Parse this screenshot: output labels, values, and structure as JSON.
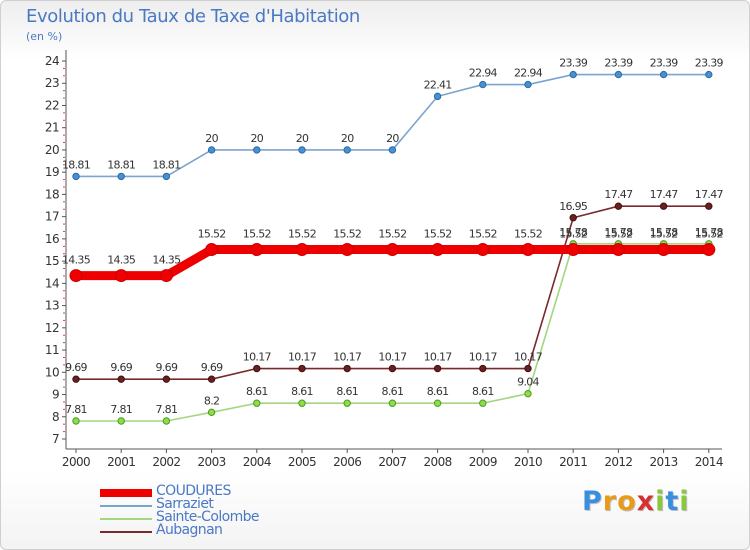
{
  "header": {
    "title": "Evolution du Taux de Taxe d'Habitation",
    "subtitle": "(en %)"
  },
  "chart_data": {
    "type": "line",
    "title": "Evolution du Taux de Taxe d'Habitation",
    "ylabel": "(en %)",
    "xlabel": "",
    "x": [
      "2000",
      "2001",
      "2002",
      "2003",
      "2004",
      "2005",
      "2006",
      "2007",
      "2008",
      "2009",
      "2010",
      "2011",
      "2012",
      "2013",
      "2014"
    ],
    "ylim": [
      7,
      24
    ],
    "yticks": [
      "7",
      "8",
      "9",
      "10",
      "11",
      "12",
      "13",
      "14",
      "15",
      "16",
      "17",
      "18",
      "19",
      "20",
      "21",
      "22",
      "23",
      "24"
    ],
    "grid": false,
    "series": [
      {
        "name": "COUDURES",
        "color": "#ee0000",
        "values": [
          14.35,
          14.35,
          14.35,
          15.52,
          15.52,
          15.52,
          15.52,
          15.52,
          15.52,
          15.52,
          15.52,
          15.52,
          15.52,
          15.52,
          15.52
        ],
        "labels": [
          "14.35",
          "14.35",
          "14.35",
          "15.52",
          "15.52",
          "15.52",
          "15.52",
          "15.52",
          "15.52",
          "15.52",
          "15.52",
          "15.52",
          "15.52",
          "15.52",
          "15.52"
        ]
      },
      {
        "name": "Sarraziet",
        "color": "#7ba4cf",
        "values": [
          18.81,
          18.81,
          18.81,
          20,
          20,
          20,
          20,
          20,
          22.41,
          22.94,
          22.94,
          23.39,
          23.39,
          23.39,
          23.39
        ],
        "labels": [
          "18.81",
          "18.81",
          "18.81",
          "20",
          "20",
          "20",
          "20",
          "20",
          "22.41",
          "22.94",
          "22.94",
          "23.39",
          "23.39",
          "23.39",
          "23.39"
        ]
      },
      {
        "name": "Sainte-Colombe",
        "color": "#a3d682",
        "values": [
          7.81,
          7.81,
          7.81,
          8.2,
          8.61,
          8.61,
          8.61,
          8.61,
          8.61,
          8.61,
          9.04,
          15.78,
          15.78,
          15.78,
          15.78
        ],
        "labels": [
          "7.81",
          "7.81",
          "7.81",
          "8.2",
          "8.61",
          "8.61",
          "8.61",
          "8.61",
          "8.61",
          "8.61",
          "9.04",
          "15.78",
          "15.78",
          "15.78",
          "15.78"
        ]
      },
      {
        "name": "Aubagnan",
        "color": "#7a2a2a",
        "values": [
          9.69,
          9.69,
          9.69,
          9.69,
          10.17,
          10.17,
          10.17,
          10.17,
          10.17,
          10.17,
          10.17,
          16.95,
          17.47,
          17.47,
          17.47
        ],
        "labels": [
          "9.69",
          "9.69",
          "9.69",
          "9.69",
          "10.17",
          "10.17",
          "10.17",
          "10.17",
          "10.17",
          "10.17",
          "10.17",
          "16.95",
          "17.47",
          "17.47",
          "17.47"
        ]
      }
    ]
  },
  "legend": {
    "items": [
      {
        "label": "COUDURES",
        "color": "#ee0000"
      },
      {
        "label": "Sarraziet",
        "color": "#7ba4cf"
      },
      {
        "label": "Sainte-Colombe",
        "color": "#a3d682"
      },
      {
        "label": "Aubagnan",
        "color": "#7a2a2a"
      }
    ]
  },
  "logo": {
    "letters": [
      "P",
      "r",
      "o",
      "x",
      "i",
      "t",
      "i"
    ],
    "colors": [
      "#3a8ee0",
      "#e89a1a",
      "#e89a1a",
      "#d83030",
      "#8cc63e",
      "#3a8ee0",
      "#8cc63e"
    ]
  }
}
